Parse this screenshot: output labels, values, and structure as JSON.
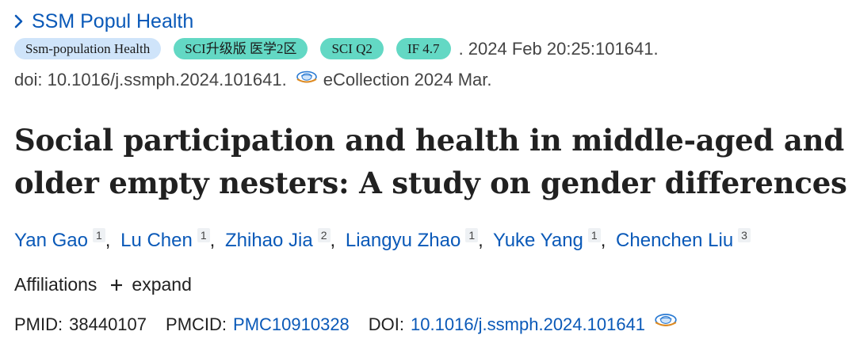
{
  "journal": {
    "name": "SSM Popul Health"
  },
  "badges": [
    {
      "label": "Ssm-population Health",
      "color": "#cfe4fa"
    },
    {
      "label": "SCI升级版 医学2区",
      "color": "#63d8c4"
    },
    {
      "label": "SCI Q2",
      "color": "#63d8c4"
    },
    {
      "label": "IF 4.7",
      "color": "#63d8c4"
    }
  ],
  "citation": {
    "date_line": ". 2024 Feb 20:25:101641.",
    "doi_line": "doi: 10.1016/j.ssmph.2024.101641.",
    "ecollection": "eCollection 2024 Mar."
  },
  "article": {
    "title": "Social participation and health in middle-aged and older empty nesters: A study on gender differences"
  },
  "authors": [
    {
      "name": "Yan Gao",
      "aff": "1"
    },
    {
      "name": "Lu Chen",
      "aff": "1"
    },
    {
      "name": "Zhihao Jia",
      "aff": "2"
    },
    {
      "name": "Liangyu Zhao",
      "aff": "1"
    },
    {
      "name": "Yuke Yang",
      "aff": "1"
    },
    {
      "name": "Chenchen Liu",
      "aff": "3"
    }
  ],
  "affiliations": {
    "label": "Affiliations",
    "expand_label": "expand"
  },
  "ids": {
    "pmid_label": "PMID:",
    "pmid": "38440107",
    "pmcid_label": "PMCID:",
    "pmcid": "PMC10910328",
    "doi_label": "DOI:",
    "doi": "10.1016/j.ssmph.2024.101641"
  },
  "colors": {
    "link": "#0a59b8",
    "badge_blue": "#cfe4fa",
    "badge_teal": "#63d8c4"
  },
  "icons": {
    "journal": "chevron-right-icon",
    "full_text": "full-text-link-icon",
    "expand": "plus-icon"
  }
}
